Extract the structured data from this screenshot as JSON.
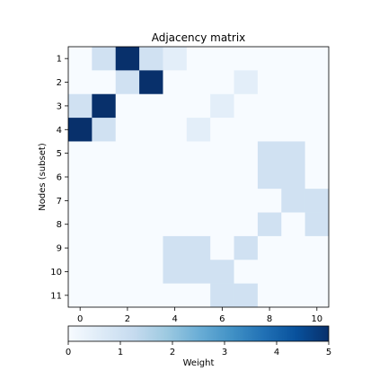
{
  "chart_data": {
    "type": "heatmap",
    "title": "Adjacency matrix",
    "ylabel": "Nodes (subset)",
    "xlabel": "",
    "colorbar_label": "Weight",
    "colormap": "Blues",
    "vmin": 0,
    "vmax": 5,
    "x_ticks": [
      0,
      2,
      4,
      6,
      8,
      10
    ],
    "y_ticks": [
      1,
      2,
      3,
      4,
      5,
      6,
      7,
      8,
      9,
      10,
      11
    ],
    "colorbar_ticks": [
      0,
      1,
      2,
      3,
      4,
      5
    ],
    "columns": [
      0,
      1,
      2,
      3,
      4,
      5,
      6,
      7,
      8,
      9,
      10
    ],
    "rows": [
      1,
      2,
      3,
      4,
      5,
      6,
      7,
      8,
      9,
      10,
      11
    ],
    "values": [
      [
        0,
        1,
        5,
        1,
        0.5,
        0,
        0,
        0,
        0,
        0,
        0
      ],
      [
        0,
        0,
        1,
        5,
        0,
        0,
        0,
        0.5,
        0,
        0,
        0
      ],
      [
        1,
        5,
        0,
        0,
        0,
        0,
        0.5,
        0,
        0,
        0,
        0
      ],
      [
        5,
        1,
        0,
        0,
        0,
        0.5,
        0,
        0,
        0,
        0,
        0
      ],
      [
        0,
        0,
        0,
        0,
        0,
        0,
        0,
        0,
        1,
        1,
        0
      ],
      [
        0,
        0,
        0,
        0,
        0,
        0,
        0,
        0,
        1,
        1,
        0
      ],
      [
        0,
        0,
        0,
        0,
        0,
        0,
        0,
        0,
        0,
        1,
        1
      ],
      [
        0,
        0,
        0,
        0,
        0,
        0,
        0,
        0,
        1,
        0,
        1
      ],
      [
        0,
        0,
        0,
        0,
        1,
        1,
        0,
        1,
        0,
        0,
        0
      ],
      [
        0,
        0,
        0,
        0,
        1,
        1,
        1,
        0,
        0,
        0,
        0
      ],
      [
        0,
        0,
        0,
        0,
        0,
        0,
        1,
        1,
        0,
        0,
        0
      ]
    ]
  }
}
